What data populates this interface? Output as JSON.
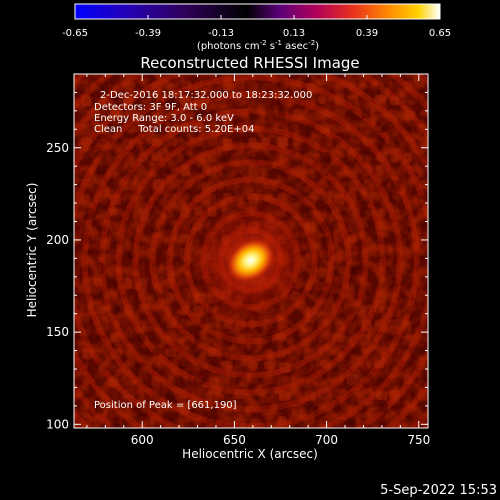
{
  "colorbar": {
    "tick_labels": [
      "-0.65",
      "-0.39",
      "-0.13",
      "0.13",
      "0.39",
      "0.65"
    ],
    "ticks": [
      -0.65,
      -0.39,
      -0.13,
      0.13,
      0.39,
      0.65
    ],
    "range": [
      -0.65,
      0.65
    ],
    "units_prefix": "(photons cm",
    "units_exp1": "-2",
    "units_mid": " s",
    "units_exp2": "-1",
    "units_mid2": " asec",
    "units_exp3": "-2",
    "units_suffix": ")",
    "palette": [
      "#0000ff",
      "#2a00c8",
      "#3c0096",
      "#000000",
      "#6a0088",
      "#b0005a",
      "#e8301e",
      "#ff7a00",
      "#ffc800",
      "#ffffff"
    ]
  },
  "title": "Reconstructed RHESSI Image",
  "annotations": {
    "line1": "2-Dec-2016 18:17:32.000 to 18:23:32.000",
    "line2": "Detectors: 3F 9F, Att 0",
    "line3": "Energy Range: 3.0 - 6.0 keV",
    "line4": "Clean     Total counts: 5.20E+04",
    "peak": "Position of Peak = [661,190]"
  },
  "axes": {
    "xlabel": "Heliocentric X (arcsec)",
    "ylabel": "Heliocentric Y (arcsec)",
    "xticks": [
      600,
      650,
      700,
      750
    ],
    "xtick_labels": [
      "600",
      "650",
      "700",
      "750"
    ],
    "yticks": [
      100,
      150,
      200,
      250
    ],
    "ytick_labels": [
      "100",
      "150",
      "200",
      "250"
    ],
    "xlim": [
      563,
      755
    ],
    "ylim": [
      98,
      290
    ]
  },
  "source": {
    "x": 661,
    "y": 190
  },
  "footer": {
    "timestamp": "5-Sep-2022 15:53"
  }
}
